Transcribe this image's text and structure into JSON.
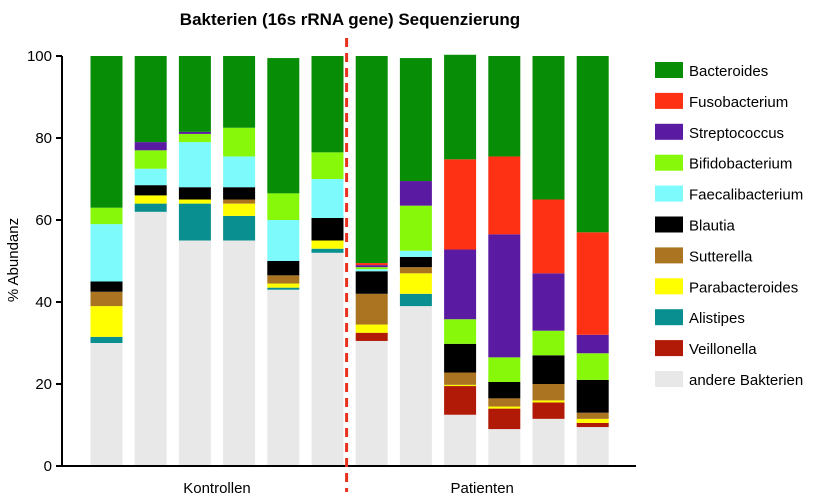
{
  "chart_data": {
    "type": "bar",
    "stacked": true,
    "title": "Bakterien (16s rRNA gene) Sequenzierung",
    "ylabel": "% Abundanz",
    "xlabel": "",
    "ylim": [
      0,
      100
    ],
    "yticks": [
      0,
      20,
      40,
      60,
      80,
      100
    ],
    "grid": false,
    "legend_position": "right",
    "groups": [
      {
        "label": "Kontrollen",
        "bars": [
          0,
          1,
          2,
          3,
          4,
          5
        ]
      },
      {
        "label": "Patienten",
        "bars": [
          6,
          7,
          8,
          9,
          10,
          11
        ]
      }
    ],
    "divider": {
      "after_bar": 5,
      "style": "dashed",
      "color": "#e8301c"
    },
    "series": [
      {
        "name": "andere Bakterien",
        "color": "#e8e8e8",
        "values": [
          30,
          62,
          55,
          55,
          43,
          52,
          30.5,
          39,
          12.5,
          9,
          11.5,
          9.5
        ]
      },
      {
        "name": "Veillonella",
        "color": "#b11a06",
        "values": [
          0,
          0,
          0,
          0,
          0,
          0,
          2,
          0,
          7,
          5,
          4,
          1
        ]
      },
      {
        "name": "Alistipes",
        "color": "#0a8f90",
        "values": [
          1.5,
          2,
          9,
          6,
          0.5,
          1,
          0,
          3,
          0,
          0,
          0,
          0
        ]
      },
      {
        "name": "Parabacteroides",
        "color": "#ffff00",
        "values": [
          7.5,
          2,
          1,
          3,
          1,
          2,
          2,
          5,
          0.3,
          0.5,
          0.5,
          1
        ]
      },
      {
        "name": "Sutterella",
        "color": "#aa7421",
        "values": [
          3.5,
          0,
          0,
          1,
          2,
          0,
          7.5,
          1.5,
          3,
          2,
          4,
          1.5
        ]
      },
      {
        "name": "Blautia",
        "color": "#000000",
        "values": [
          2.5,
          2.5,
          3,
          3,
          3.5,
          5.5,
          5.5,
          2.5,
          7,
          4,
          7,
          8
        ]
      },
      {
        "name": "Faecalibacterium",
        "color": "#7dfbfc",
        "values": [
          14,
          4,
          11,
          7.5,
          10,
          9.5,
          0.5,
          1.5,
          0,
          0,
          0,
          0
        ]
      },
      {
        "name": "Bifidobacterium",
        "color": "#88f80a",
        "values": [
          4,
          4.5,
          2,
          7,
          6.5,
          6.5,
          0.5,
          11,
          6,
          6,
          6,
          6.5
        ]
      },
      {
        "name": "Streptococcus",
        "color": "#5b1aa2",
        "values": [
          0,
          2,
          0.5,
          0,
          0,
          0,
          0.5,
          6,
          17,
          30,
          14,
          4.5
        ]
      },
      {
        "name": "Fusobacterium",
        "color": "#fe3115",
        "values": [
          0,
          0,
          0,
          0,
          0,
          0,
          0.5,
          0,
          22,
          19,
          18,
          25
        ]
      },
      {
        "name": "Bacteroides",
        "color": "#088e06",
        "values": [
          37,
          21,
          18.5,
          17.5,
          33,
          23.5,
          50.5,
          30,
          25.5,
          24.5,
          35,
          43
        ]
      }
    ],
    "legend_order": [
      "Bacteroides",
      "Fusobacterium",
      "Streptococcus",
      "Bifidobacterium",
      "Faecalibacterium",
      "Blautia",
      "Sutterella",
      "Parabacteroides",
      "Alistipes",
      "Veillonella",
      "andere Bakterien"
    ]
  }
}
